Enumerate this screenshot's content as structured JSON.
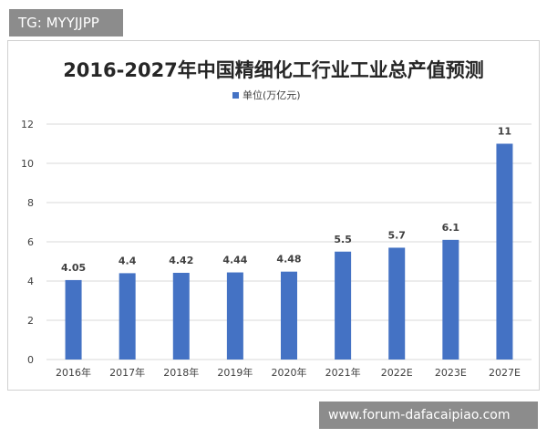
{
  "watermark_top": "TG: MYYJJPP",
  "watermark_bottom": "www.forum-dafacaipiao.com",
  "colors": {
    "bar": "#4472C4",
    "grid": "#d9d9d9",
    "axis_text": "#404040",
    "label_text": "#404040",
    "title_text": "#262626"
  },
  "chart_data": {
    "type": "bar",
    "title": "2016-2027年中国精细化工行业工业总产值预测",
    "categories": [
      "2016年",
      "2017年",
      "2018年",
      "2019年",
      "2020年",
      "2021年",
      "2022E",
      "2023E",
      "2027E"
    ],
    "series": [
      {
        "name": "单位(万亿元)",
        "values": [
          4.05,
          4.4,
          4.42,
          4.44,
          4.48,
          5.5,
          5.7,
          6.1,
          11
        ]
      }
    ],
    "value_labels": [
      "4.05",
      "4.4",
      "4.42",
      "4.44",
      "4.48",
      "5.5",
      "5.7",
      "6.1",
      "11"
    ],
    "y_ticks": [
      "0",
      "2",
      "4",
      "6",
      "8",
      "10",
      "12"
    ],
    "ylim": [
      0,
      12
    ],
    "grid": true,
    "legend_position": "top-center"
  }
}
